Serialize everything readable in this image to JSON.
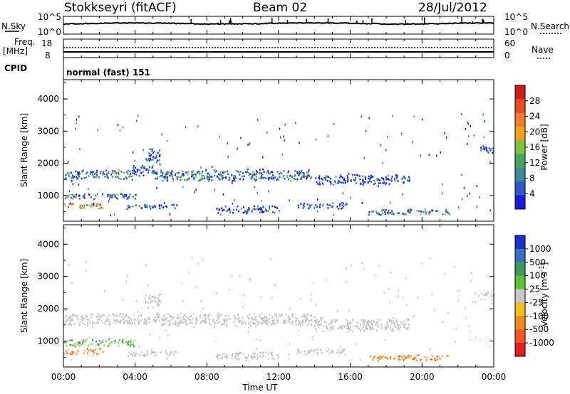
{
  "header": {
    "site": "Stokkseyri (fitACF)",
    "beam": "Beam 02",
    "date": "28/Jul/2012"
  },
  "top_panels": {
    "nsky_label": "N.Sky",
    "nsky_ticks": [
      "10^5",
      "10^0"
    ],
    "nsearch_label": "N.Search",
    "nsearch_ticks": [
      "10^5",
      "10^0"
    ],
    "freq_label": "Freq.",
    "freq_unit": "[MHz]",
    "freq_ticks": [
      "18",
      "8"
    ],
    "nave_label": "Nave",
    "nave_ticks": [
      "60",
      "0"
    ],
    "cpid_label": "CPID",
    "cpid_text": "normal (fast) 151"
  },
  "chart_data": [
    {
      "type": "heatmap",
      "title": "",
      "quantity": "Power",
      "xlabel": "",
      "ylabel": "Slant Range [km]",
      "x_ticks": [
        "00:00",
        "04:00",
        "08:00",
        "12:00",
        "16:00",
        "20:00",
        "00:00"
      ],
      "xlim_hours": [
        0,
        24
      ],
      "y_ticks": [
        "1000",
        "2000",
        "3000",
        "4000"
      ],
      "ylim": [
        200,
        4600
      ],
      "colorbar": {
        "label": "Power [dB]",
        "ticks": [
          "4",
          "8",
          "12",
          "16",
          "20",
          "24",
          "28"
        ],
        "range": [
          0,
          30
        ],
        "colors": [
          "#1a1ad8",
          "#2f57c9",
          "#3a8a9a",
          "#46a35c",
          "#7fc23e",
          "#f0a020",
          "#f07d2a",
          "#e84a20",
          "#d01c1c"
        ]
      },
      "echo_regions": [
        {
          "t": [
            0.0,
            3.8
          ],
          "r": [
            1500,
            1850
          ],
          "level": "mid"
        },
        {
          "t": [
            3.8,
            5.0
          ],
          "r": [
            1600,
            2000
          ],
          "level": "low"
        },
        {
          "t": [
            4.5,
            5.4
          ],
          "r": [
            2050,
            2500
          ],
          "level": "low"
        },
        {
          "t": [
            5.0,
            14.0
          ],
          "r": [
            1450,
            1850
          ],
          "level": "mid"
        },
        {
          "t": [
            14.0,
            19.3
          ],
          "r": [
            1350,
            1700
          ],
          "level": "low"
        },
        {
          "t": [
            0.0,
            4.0
          ],
          "r": [
            900,
            1100
          ],
          "level": "mid"
        },
        {
          "t": [
            0.0,
            2.2
          ],
          "r": [
            600,
            800
          ],
          "level": "high"
        },
        {
          "t": [
            3.5,
            6.3
          ],
          "r": [
            600,
            750
          ],
          "level": "low"
        },
        {
          "t": [
            8.5,
            12.0
          ],
          "r": [
            450,
            700
          ],
          "level": "low"
        },
        {
          "t": [
            13.0,
            15.8
          ],
          "r": [
            600,
            800
          ],
          "level": "low"
        },
        {
          "t": [
            17.0,
            21.5
          ],
          "r": [
            400,
            600
          ],
          "level": "mid"
        },
        {
          "t": [
            23.2,
            24.0
          ],
          "r": [
            2300,
            2600
          ],
          "level": "low"
        }
      ]
    },
    {
      "type": "heatmap",
      "title": "",
      "quantity": "Velocity",
      "xlabel": "Time UT",
      "ylabel": "Slant Range [km]",
      "x_ticks": [
        "00:00",
        "04:00",
        "08:00",
        "12:00",
        "16:00",
        "20:00",
        "00:00"
      ],
      "xlim_hours": [
        0,
        24
      ],
      "y_ticks": [
        "1000",
        "2000",
        "3000",
        "4000"
      ],
      "ylim": [
        200,
        4600
      ],
      "colorbar": {
        "label": "Velocity [m s",
        "label_exponent": "-1",
        "label_close": "]",
        "ticks": [
          "1000",
          "500",
          "100",
          "25",
          "-25",
          "-100",
          "-500",
          "-1000"
        ],
        "colors": [
          "#1a30c8",
          "#3a6fc0",
          "#3f9a5a",
          "#5fc03a",
          "#c8c8c8",
          "#f0c020",
          "#f08a20",
          "#f05a20",
          "#e01e1e"
        ]
      },
      "echo_regions": [
        {
          "t": [
            0.0,
            4.8
          ],
          "r": [
            1500,
            1900
          ],
          "level": "gray"
        },
        {
          "t": [
            4.5,
            5.4
          ],
          "r": [
            2050,
            2500
          ],
          "level": "gray"
        },
        {
          "t": [
            5.0,
            14.0
          ],
          "r": [
            1450,
            1900
          ],
          "level": "gray"
        },
        {
          "t": [
            14.0,
            19.3
          ],
          "r": [
            1300,
            1750
          ],
          "level": "gray"
        },
        {
          "t": [
            0.0,
            4.0
          ],
          "r": [
            850,
            1100
          ],
          "level": "green"
        },
        {
          "t": [
            0.0,
            2.2
          ],
          "r": [
            600,
            800
          ],
          "level": "orange"
        },
        {
          "t": [
            3.5,
            6.3
          ],
          "r": [
            550,
            750
          ],
          "level": "gray"
        },
        {
          "t": [
            8.5,
            12.0
          ],
          "r": [
            450,
            700
          ],
          "level": "gray"
        },
        {
          "t": [
            13.0,
            15.8
          ],
          "r": [
            600,
            800
          ],
          "level": "gray"
        },
        {
          "t": [
            17.0,
            21.5
          ],
          "r": [
            400,
            600
          ],
          "level": "orange"
        },
        {
          "t": [
            23.2,
            24.0
          ],
          "r": [
            2300,
            2600
          ],
          "level": "gray"
        }
      ]
    }
  ]
}
